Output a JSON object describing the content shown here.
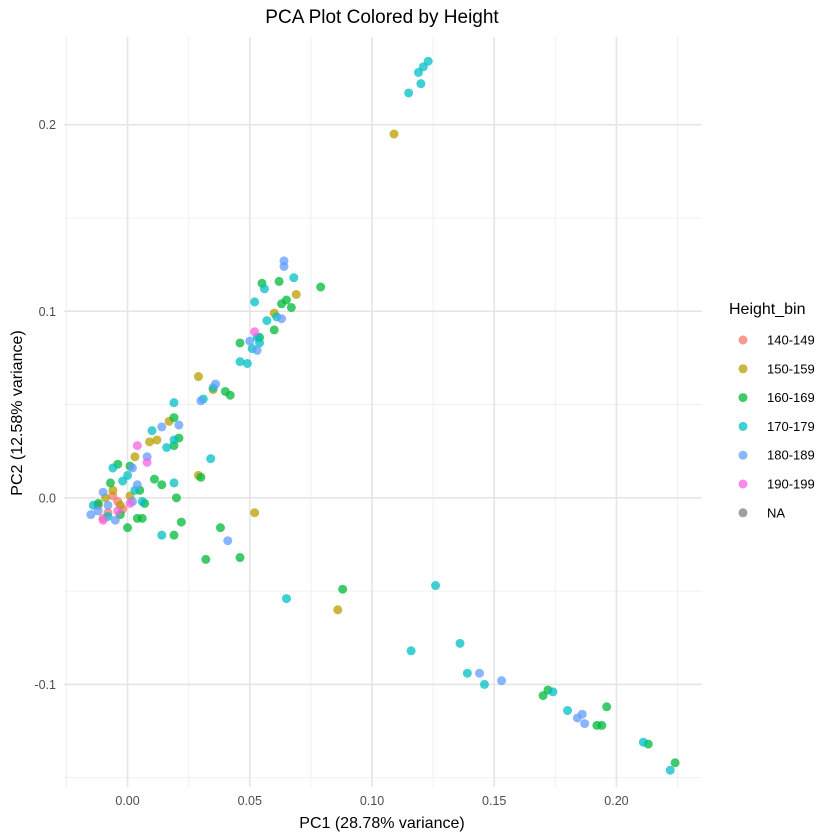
{
  "chart_data": {
    "type": "scatter",
    "title": "PCA Plot Colored by Height",
    "xlabel": "PC1 (28.78% variance)",
    "ylabel": "PC2 (12.58% variance)",
    "xlim": [
      -0.026,
      0.235
    ],
    "ylim": [
      -0.155,
      0.247
    ],
    "x_ticks": [
      0.0,
      0.05,
      0.1,
      0.15,
      0.2
    ],
    "x_tick_labels": [
      "0.00",
      "0.05",
      "0.10",
      "0.15",
      "0.20"
    ],
    "y_ticks": [
      -0.1,
      0.0,
      0.1,
      0.2
    ],
    "y_tick_labels": [
      "-0.1",
      "0.0",
      "0.1",
      "0.2"
    ],
    "grid": true,
    "legend": {
      "title": "Height_bin",
      "placement": "right",
      "entries": [
        {
          "label": "140-149",
          "color": "#F8766D"
        },
        {
          "label": "150-159",
          "color": "#B79F00"
        },
        {
          "label": "160-169",
          "color": "#00BA38"
        },
        {
          "label": "170-179",
          "color": "#00BFC4"
        },
        {
          "label": "180-189",
          "color": "#619CFF"
        },
        {
          "label": "190-199",
          "color": "#F564E3"
        },
        {
          "label": "NA",
          "color": "#7F7F7F"
        }
      ]
    },
    "series": [
      {
        "name": "140-149",
        "color": "#F8766D",
        "points": [
          [
            -0.012,
            -0.004
          ],
          [
            -0.008,
            -0.008
          ],
          [
            -0.004,
            -0.002
          ],
          [
            -0.01,
            -0.011
          ],
          [
            -0.002,
            -0.006
          ],
          [
            -0.006,
            0.001
          ]
        ]
      },
      {
        "name": "150-159",
        "color": "#B79F00",
        "points": [
          [
            0.109,
            0.195
          ],
          [
            0.086,
            -0.06
          ],
          [
            0.052,
            -0.008
          ],
          [
            0.069,
            0.109
          ],
          [
            0.06,
            0.099
          ],
          [
            0.029,
            0.065
          ],
          [
            0.035,
            0.058
          ],
          [
            0.017,
            0.041
          ],
          [
            0.029,
            0.012
          ],
          [
            0.009,
            0.03
          ],
          [
            0.012,
            0.031
          ],
          [
            0.003,
            0.022
          ],
          [
            -0.006,
            0.004
          ],
          [
            -0.003,
            -0.004
          ],
          [
            0.001,
            0.001
          ],
          [
            -0.009,
            0.0
          ]
        ]
      },
      {
        "name": "160-169",
        "color": "#00BA38",
        "points": [
          [
            0.062,
            0.116
          ],
          [
            0.079,
            0.113
          ],
          [
            0.055,
            0.115
          ],
          [
            0.067,
            0.102
          ],
          [
            0.065,
            0.106
          ],
          [
            0.063,
            0.104
          ],
          [
            0.06,
            0.09
          ],
          [
            0.054,
            0.086
          ],
          [
            0.046,
            0.083
          ],
          [
            0.04,
            0.057
          ],
          [
            0.042,
            0.055
          ],
          [
            0.019,
            0.043
          ],
          [
            0.021,
            0.032
          ],
          [
            0.019,
            0.028
          ],
          [
            0.011,
            0.01
          ],
          [
            0.014,
            0.007
          ],
          [
            0.02,
            0.0
          ],
          [
            0.03,
            0.011
          ],
          [
            0.022,
            -0.013
          ],
          [
            0.019,
            -0.02
          ],
          [
            0.004,
            -0.011
          ],
          [
            0.006,
            -0.011
          ],
          [
            0.038,
            -0.016
          ],
          [
            0.032,
            -0.033
          ],
          [
            0.046,
            -0.032
          ],
          [
            0.088,
            -0.049
          ],
          [
            0.17,
            -0.106
          ],
          [
            0.172,
            -0.103
          ],
          [
            0.192,
            -0.122
          ],
          [
            0.194,
            -0.122
          ],
          [
            0.196,
            -0.112
          ],
          [
            0.213,
            -0.132
          ],
          [
            0.224,
            -0.142
          ],
          [
            -0.004,
            0.018
          ],
          [
            0.001,
            0.017
          ],
          [
            0.005,
            0.004
          ],
          [
            -0.012,
            -0.003
          ],
          [
            -0.003,
            -0.009
          ],
          [
            0.007,
            -0.003
          ],
          [
            -0.007,
            0.008
          ],
          [
            0.0,
            -0.016
          ]
        ]
      },
      {
        "name": "170-179",
        "color": "#00BFC4",
        "points": [
          [
            0.123,
            0.234
          ],
          [
            0.121,
            0.231
          ],
          [
            0.119,
            0.228
          ],
          [
            0.12,
            0.222
          ],
          [
            0.115,
            0.217
          ],
          [
            0.068,
            0.118
          ],
          [
            0.056,
            0.112
          ],
          [
            0.052,
            0.105
          ],
          [
            0.061,
            0.097
          ],
          [
            0.057,
            0.095
          ],
          [
            0.053,
            0.086
          ],
          [
            0.054,
            0.083
          ],
          [
            0.049,
            0.072
          ],
          [
            0.046,
            0.073
          ],
          [
            0.051,
            0.08
          ],
          [
            0.035,
            0.059
          ],
          [
            0.031,
            0.053
          ],
          [
            0.019,
            0.051
          ],
          [
            0.019,
            0.031
          ],
          [
            0.016,
            0.027
          ],
          [
            0.034,
            0.021
          ],
          [
            0.019,
            0.008
          ],
          [
            0.01,
            0.036
          ],
          [
            0.014,
            -0.02
          ],
          [
            0.065,
            -0.054
          ],
          [
            0.126,
            -0.047
          ],
          [
            0.116,
            -0.082
          ],
          [
            0.136,
            -0.078
          ],
          [
            0.139,
            -0.094
          ],
          [
            0.146,
            -0.1
          ],
          [
            0.174,
            -0.104
          ],
          [
            0.18,
            -0.114
          ],
          [
            0.211,
            -0.131
          ],
          [
            0.222,
            -0.146
          ],
          [
            0.0,
            0.012
          ],
          [
            -0.006,
            0.016
          ],
          [
            0.003,
            0.004
          ],
          [
            -0.014,
            -0.004
          ],
          [
            -0.008,
            -0.01
          ],
          [
            -0.002,
            0.009
          ],
          [
            0.006,
            -0.002
          ]
        ]
      },
      {
        "name": "180-189",
        "color": "#619CFF",
        "points": [
          [
            0.064,
            0.127
          ],
          [
            0.064,
            0.124
          ],
          [
            0.063,
            0.096
          ],
          [
            0.053,
            0.079
          ],
          [
            0.05,
            0.084
          ],
          [
            0.036,
            0.061
          ],
          [
            0.03,
            0.052
          ],
          [
            0.021,
            0.039
          ],
          [
            0.014,
            0.038
          ],
          [
            0.008,
            0.022
          ],
          [
            0.002,
            0.016
          ],
          [
            0.041,
            -0.023
          ],
          [
            0.144,
            -0.094
          ],
          [
            0.153,
            -0.098
          ],
          [
            0.184,
            -0.118
          ],
          [
            0.186,
            -0.116
          ],
          [
            0.187,
            -0.121
          ],
          [
            -0.015,
            -0.009
          ],
          [
            -0.012,
            -0.007
          ],
          [
            -0.008,
            -0.004
          ],
          [
            -0.005,
            -0.012
          ],
          [
            0.004,
            0.007
          ],
          [
            0.002,
            -0.002
          ],
          [
            -0.01,
            0.003
          ]
        ]
      },
      {
        "name": "190-199",
        "color": "#F564E3",
        "points": [
          [
            0.052,
            0.089
          ],
          [
            0.004,
            0.028
          ],
          [
            0.008,
            0.019
          ],
          [
            -0.004,
            -0.007
          ],
          [
            -0.01,
            -0.012
          ],
          [
            0.001,
            -0.003
          ]
        ]
      }
    ]
  }
}
